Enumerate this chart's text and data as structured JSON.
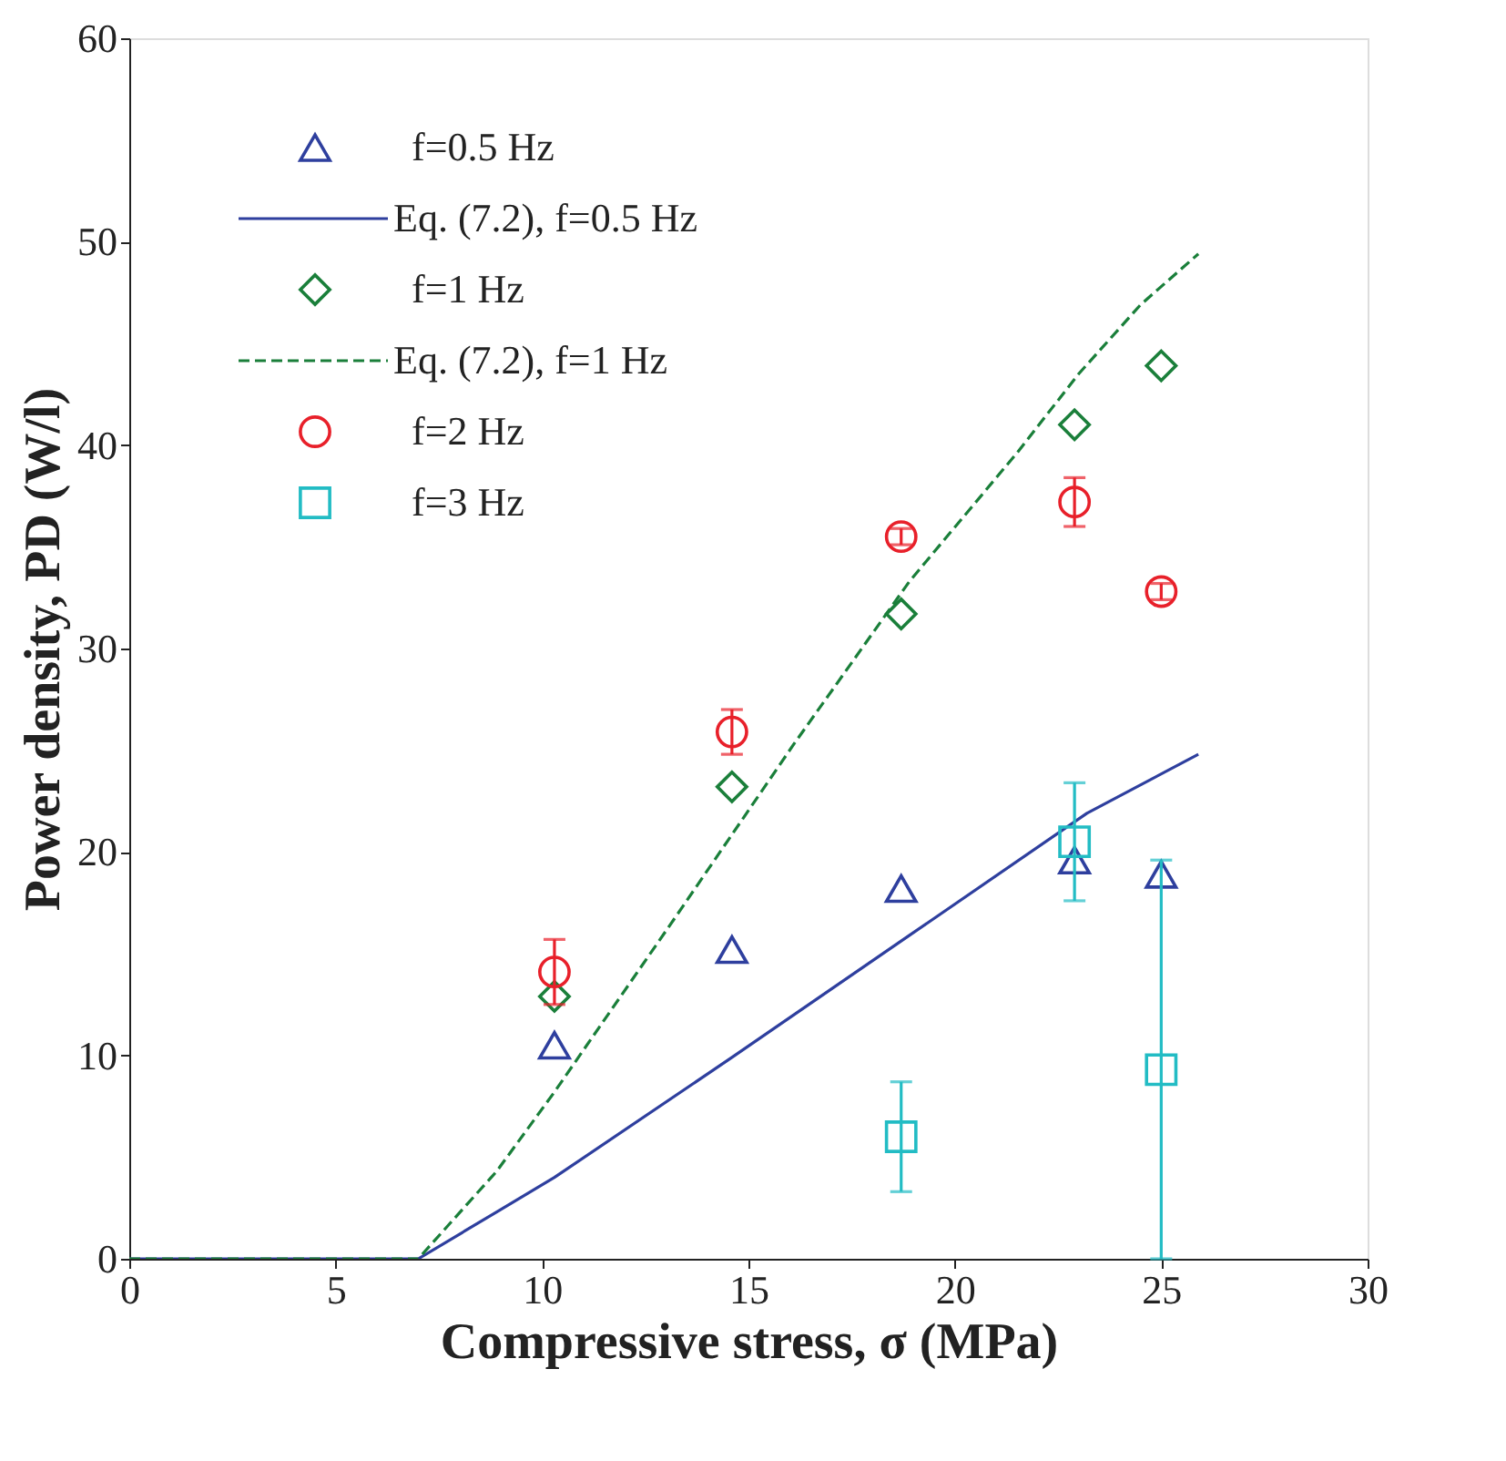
{
  "chart_data": {
    "type": "scatter",
    "xlabel": "Compressive stress, σ (MPa)",
    "ylabel": "Power density, PD (W/l)",
    "xlim": [
      0,
      30
    ],
    "xticks": [
      0,
      5,
      10,
      15,
      20,
      25,
      30
    ],
    "ylim": [
      0,
      60
    ],
    "yticks": [
      0,
      10,
      20,
      30,
      40,
      50,
      60
    ],
    "grid": false,
    "legend": "top left",
    "series": [
      {
        "name": "f=0.5 Hz",
        "marker": "triangle",
        "color": "#2e3f9e",
        "x": [
          10.3,
          14.6,
          18.7,
          22.9,
          25.0
        ],
        "values": [
          10.5,
          15.2,
          18.2,
          19.6,
          18.9
        ]
      },
      {
        "name": "Eq. (7.2), f=0.5 Hz",
        "type": "line",
        "line_style": "solid",
        "color": "#2e3f9e",
        "x": [
          0,
          7.0,
          8.9,
          10.3,
          14.6,
          18.9,
          23.2,
          25.9
        ],
        "values": [
          0,
          0,
          2.3,
          4.0,
          9.9,
          15.9,
          21.9,
          24.8
        ]
      },
      {
        "name": "f=1 Hz",
        "marker": "diamond",
        "color": "#1a7f3a",
        "x": [
          10.3,
          14.6,
          18.7,
          22.9,
          25.0
        ],
        "values": [
          12.9,
          23.2,
          31.7,
          41.0,
          43.9
        ]
      },
      {
        "name": "Eq. (7.2), f=1 Hz",
        "type": "line",
        "line_style": "dashed",
        "color": "#1a7f3a",
        "x": [
          0,
          7.0,
          8.9,
          10.3,
          13.2,
          16.1,
          18.9,
          21.5,
          23.0,
          24.5,
          25.9
        ],
        "values": [
          0,
          0,
          4.3,
          8.2,
          16.7,
          25.3,
          33.3,
          39.6,
          43.5,
          46.9,
          49.4
        ]
      },
      {
        "name": "f=2 Hz",
        "marker": "circle",
        "color": "#e8202a",
        "x": [
          10.3,
          14.6,
          18.7,
          22.9,
          25.0
        ],
        "values": [
          14.1,
          25.9,
          35.5,
          37.2,
          32.8
        ],
        "errors": [
          1.6,
          1.1,
          0.4,
          1.2,
          0.4
        ]
      },
      {
        "name": "f=3 Hz",
        "marker": "square",
        "color": "#22bcc4",
        "x": [
          18.7,
          22.9,
          25.0
        ],
        "values": [
          6.0,
          20.5,
          9.3
        ],
        "errors": [
          2.7,
          2.9,
          [
            0,
            19.6
          ]
        ]
      }
    ]
  }
}
